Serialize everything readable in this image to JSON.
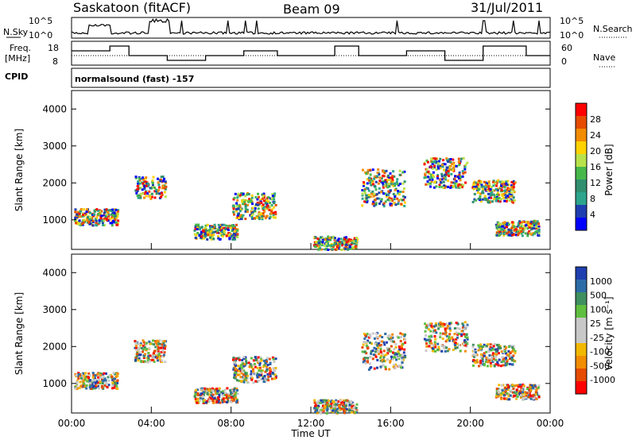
{
  "header": {
    "station": "Saskatoon (fitACF)",
    "beam": "Beam 09",
    "date": "31/Jul/2011"
  },
  "noise_panel": {
    "left_label": "N.Sky",
    "right_label": "N.Search",
    "left_ticks": [
      "10^5",
      "10^0"
    ],
    "right_ticks": [
      "10^5",
      "10^0"
    ]
  },
  "freq_panel": {
    "left_label_line1": "Freq.",
    "left_label_line2": "[MHz]",
    "left_ticks": [
      "18",
      "8"
    ],
    "right_label": "Nave",
    "right_ticks": [
      "60",
      "0"
    ],
    "cpid_label": "CPID",
    "cpid_text": "normalsound (fast) -157"
  },
  "chart_data": [
    {
      "type": "heatmap",
      "name": "power",
      "ylabel": "Slant Range [km]",
      "ylim": [
        200,
        4500
      ],
      "yticks": [
        1000,
        2000,
        3000,
        4000
      ],
      "xlim_hours": [
        0,
        24
      ],
      "colorbar": {
        "label": "Power [dB]",
        "ticks": [
          "28",
          "24",
          "20",
          "16",
          "12",
          "8",
          "4"
        ],
        "colors": [
          "#ff0000",
          "#e64b00",
          "#f28c00",
          "#ffd200",
          "#b9e24a",
          "#46b84a",
          "#2f8f6f",
          "#2ca58c",
          "#1f3fb0",
          "#0000ff"
        ]
      }
    },
    {
      "type": "heatmap",
      "name": "velocity",
      "ylabel": "Slant Range [km]",
      "ylim": [
        200,
        4500
      ],
      "yticks": [
        1000,
        2000,
        3000,
        4000
      ],
      "xlim_hours": [
        0,
        24
      ],
      "xticks": [
        "00:00",
        "04:00",
        "08:00",
        "12:00",
        "16:00",
        "20:00",
        "00:00"
      ],
      "xlabel": "Time UT",
      "colorbar": {
        "label": "Velocity [m s⁻¹]",
        "ticks": [
          "1000",
          "500",
          "100",
          "25",
          "-25",
          "-100",
          "-500",
          "-1000"
        ],
        "colors": [
          "#1f3fb0",
          "#2d6ca8",
          "#3f8f5f",
          "#5fbf3f",
          "#c8c8c8",
          "#c8c8c8",
          "#f2b800",
          "#f28c00",
          "#e64b00",
          "#ff0000"
        ]
      }
    }
  ]
}
